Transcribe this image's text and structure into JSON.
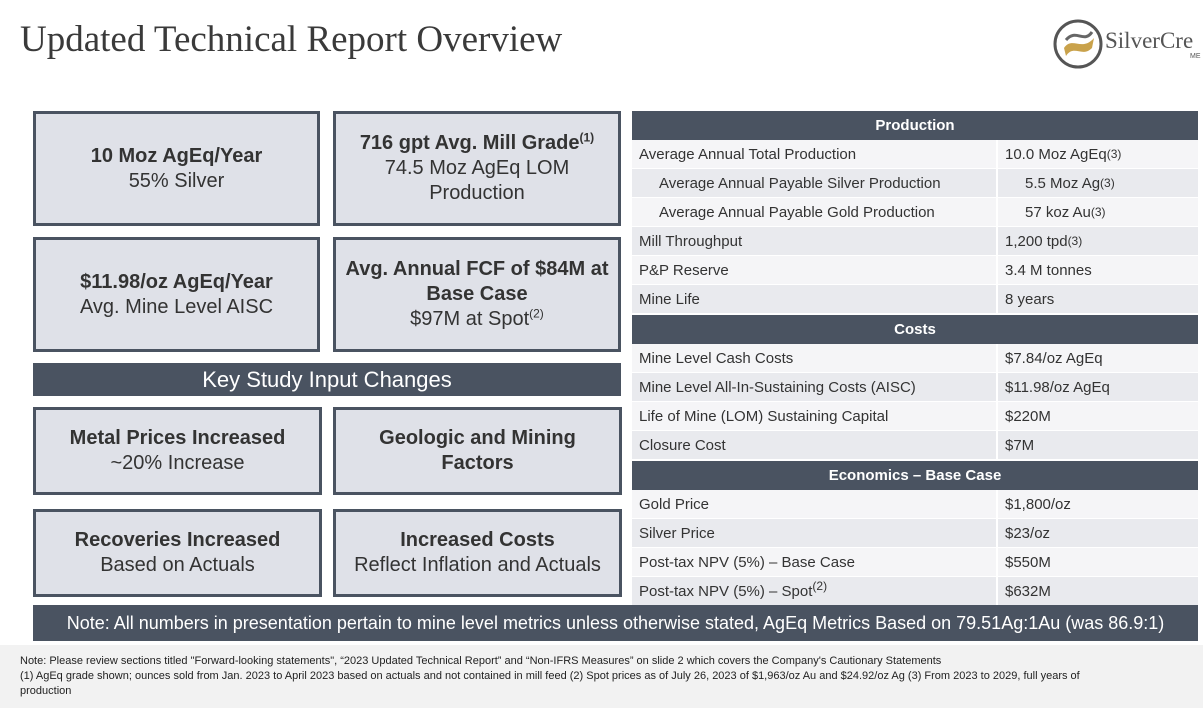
{
  "title": "Updated Technical Report Overview",
  "logo": {
    "name": "SilverCre",
    "sub": "ME"
  },
  "highlights": [
    {
      "heading": "10 Moz AgEq/Year",
      "text": "55% Silver"
    },
    {
      "heading": "716 gpt Avg. Mill Grade",
      "heading_note": "(1)",
      "text": "74.5 Moz AgEq LOM Production"
    },
    {
      "heading": "$11.98/oz AgEq/Year",
      "text": "Avg. Mine Level AISC"
    },
    {
      "heading": "Avg. Annual FCF of $84M at Base Case",
      "text": "$97M at Spot",
      "text_note": "(2)"
    }
  ],
  "banner": "Key Study Input Changes",
  "changes": [
    {
      "heading": "Metal Prices Increased",
      "text": "~20% Increase"
    },
    {
      "heading": "Geologic and Mining Factors"
    },
    {
      "heading": "Recoveries Increased",
      "text": "Based on Actuals"
    },
    {
      "heading": "Increased Costs",
      "text": "Reflect Inflation and Actuals"
    }
  ],
  "table": [
    {
      "header": "Production",
      "rows": [
        {
          "label": "Average Annual Total Production",
          "value": "10.0 Moz AgEq",
          "value_note": "(3)"
        },
        {
          "label": "Average Annual Payable Silver Production",
          "value": "5.5 Moz Ag",
          "value_note": "(3)",
          "indent": true
        },
        {
          "label": "Average Annual Payable Gold Production",
          "value": "57 koz Au",
          "value_note": "(3)",
          "indent": true
        },
        {
          "label": "Mill Throughput",
          "value": "1,200 tpd",
          "value_note": "(3)"
        },
        {
          "label": "P&P Reserve",
          "value": "3.4 M tonnes"
        },
        {
          "label": "Mine Life",
          "value": "8 years"
        }
      ]
    },
    {
      "header": "Costs",
      "rows": [
        {
          "label": "Mine Level Cash Costs",
          "value": "$7.84/oz AgEq"
        },
        {
          "label": "Mine Level All-In-Sustaining Costs (AISC)",
          "value": "$11.98/oz AgEq"
        },
        {
          "label": "Life of Mine (LOM) Sustaining Capital",
          "value": "$220M"
        },
        {
          "label": "Closure Cost",
          "value": "$7M"
        }
      ]
    },
    {
      "header": "Economics – Base Case",
      "rows": [
        {
          "label": "Gold Price",
          "value": "$1,800/oz"
        },
        {
          "label": "Silver Price",
          "value": "$23/oz"
        },
        {
          "label": "Post-tax NPV (5%) – Base Case",
          "value": "$550M"
        },
        {
          "label": "Post-tax NPV (5%) – Spot",
          "label_note": "(2)",
          "value": "$632M"
        }
      ]
    }
  ],
  "note": "Note: All numbers in presentation pertain to mine level metrics unless otherwise stated, AgEq Metrics Based on 79.51Ag:1Au (was 86.9:1)",
  "footnotes": [
    "Note: Please review sections titled \"Forward-looking statements\", “2023 Updated Technical Report” and “Non-IFRS Measures” on slide 2 which covers the Company's Cautionary Statements",
    "(1) AgEq grade shown; ounces sold from Jan. 2023 to April 2023 based on actuals and not contained in mill feed (2) Spot prices as of July 26, 2023 of $1,963/oz Au and $24.92/oz Ag (3) From 2023 to 2029, full years of production"
  ]
}
